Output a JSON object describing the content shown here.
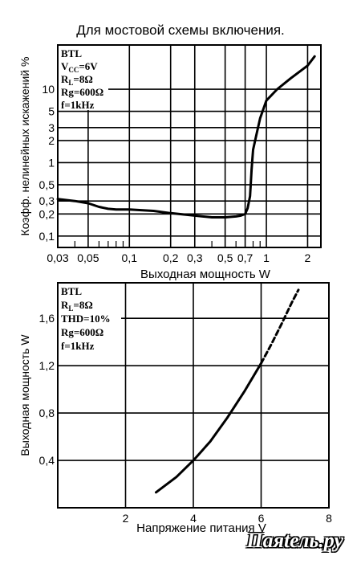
{
  "page": {
    "title": "Для мостовой схемы включения.",
    "watermark": "Паяtель.ру"
  },
  "chart_data": [
    {
      "type": "line",
      "xscale": "log",
      "yscale": "log",
      "xlabel": "Выходная мощность W",
      "ylabel": "Коэфф. нелинейных искажений %",
      "xlim": [
        0.03,
        2.5
      ],
      "ylim": [
        0.07,
        40
      ],
      "x_ticks": [
        {
          "value": 0.03,
          "label": "0,03"
        },
        {
          "value": 0.05,
          "label": "0,05"
        },
        {
          "value": 0.1,
          "label": "0,1"
        },
        {
          "value": 0.2,
          "label": "0,2"
        },
        {
          "value": 0.3,
          "label": "0,3"
        },
        {
          "value": 0.5,
          "label": "0,5"
        },
        {
          "value": 0.7,
          "label": "0,7"
        },
        {
          "value": 1,
          "label": "1"
        },
        {
          "value": 2,
          "label": "2"
        }
      ],
      "x_minor": [
        0.04,
        0.06,
        0.07,
        0.08,
        0.09,
        0.4,
        0.6,
        0.8,
        0.9
      ],
      "y_ticks": [
        {
          "value": 0.1,
          "label": "0,1"
        },
        {
          "value": 0.2,
          "label": "0,2"
        },
        {
          "value": 0.3,
          "label": "0,3"
        },
        {
          "value": 0.5,
          "label": "0,5"
        },
        {
          "value": 1,
          "label": "1"
        },
        {
          "value": 2,
          "label": "2"
        },
        {
          "value": 3,
          "label": "3"
        },
        {
          "value": 5,
          "label": "5"
        },
        {
          "value": 10,
          "label": "10"
        }
      ],
      "annotations": [
        "BTL",
        "VCC=6V",
        "RL=8Ω",
        "Rg=600Ω",
        "f=1kHz"
      ],
      "series": [
        {
          "x": [
            0.03,
            0.04,
            0.05,
            0.06,
            0.07,
            0.08,
            0.1,
            0.15,
            0.2,
            0.3,
            0.4,
            0.5,
            0.6,
            0.65,
            0.7,
            0.73,
            0.76,
            0.78,
            0.8,
            0.85,
            0.9,
            1.0,
            1.2,
            1.5,
            2.0,
            2.25
          ],
          "y": [
            0.32,
            0.3,
            0.28,
            0.25,
            0.235,
            0.23,
            0.23,
            0.22,
            0.205,
            0.19,
            0.18,
            0.18,
            0.185,
            0.19,
            0.2,
            0.24,
            0.35,
            0.8,
            1.5,
            2.5,
            4,
            7,
            10,
            14,
            21,
            28
          ]
        }
      ]
    },
    {
      "type": "line",
      "xlabel": "Напряжение питания V",
      "ylabel": "Выходная мощность W",
      "xlim": [
        0,
        8
      ],
      "ylim": [
        0,
        1.9
      ],
      "x_ticks": [
        {
          "value": 2,
          "label": "2"
        },
        {
          "value": 4,
          "label": "4"
        },
        {
          "value": 6,
          "label": "6"
        },
        {
          "value": 8,
          "label": "8"
        }
      ],
      "y_ticks": [
        {
          "value": 0.4,
          "label": "0,4"
        },
        {
          "value": 0.8,
          "label": "0,8"
        },
        {
          "value": 1.2,
          "label": "1,2"
        },
        {
          "value": 1.6,
          "label": "1,6"
        }
      ],
      "annotations": [
        "BTL",
        "RL=8Ω",
        "THD=10%",
        "Rg=600Ω",
        "f=1kHz"
      ],
      "series": [
        {
          "style": "solid",
          "x": [
            2.9,
            3.5,
            4.0,
            4.5,
            5.0,
            5.5,
            6.0
          ],
          "y": [
            0.13,
            0.26,
            0.4,
            0.56,
            0.76,
            0.98,
            1.22
          ]
        },
        {
          "style": "dashed",
          "x": [
            6.0,
            6.3,
            6.6,
            6.9,
            7.1
          ],
          "y": [
            1.22,
            1.38,
            1.55,
            1.73,
            1.84
          ]
        }
      ]
    }
  ]
}
